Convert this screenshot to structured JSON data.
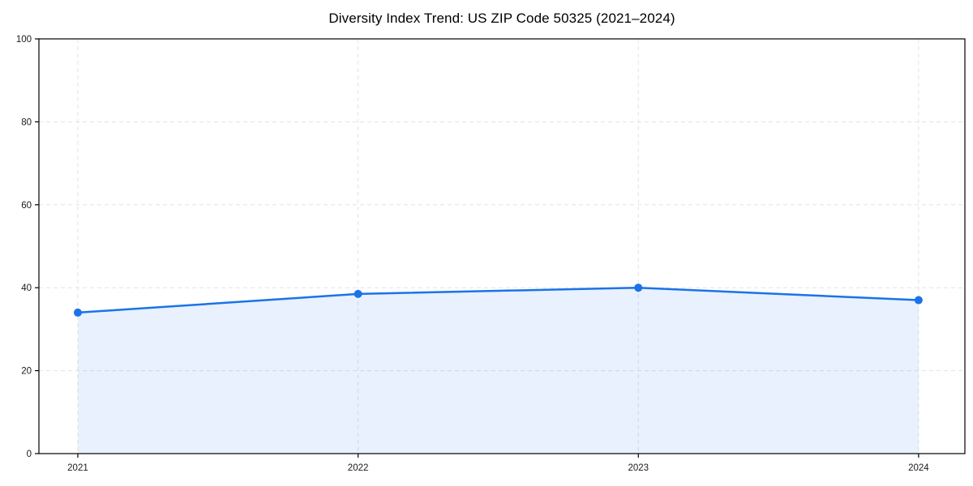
{
  "page": {
    "background_color": "#ffffff"
  },
  "chart_data": {
    "type": "line",
    "title": "Diversity Index Trend: US ZIP Code 50325 (2021–2024)",
    "x": [
      "2021",
      "2022",
      "2023",
      "2024"
    ],
    "values": [
      34,
      38.5,
      40,
      37
    ],
    "xlabel": "",
    "ylabel": "",
    "ylim": [
      0,
      100
    ],
    "yticks": [
      0,
      20,
      40,
      60,
      80,
      100
    ],
    "grid": "dashed",
    "legend": "none",
    "marker": "circle",
    "area": true,
    "line_color": "#1a73e8",
    "fill_color": "#1a73e8",
    "fill_opacity": 0.1,
    "grid_color": "#e3e3e3",
    "axis_color": "#000000",
    "tick_label_color": "#1a1a1a"
  }
}
